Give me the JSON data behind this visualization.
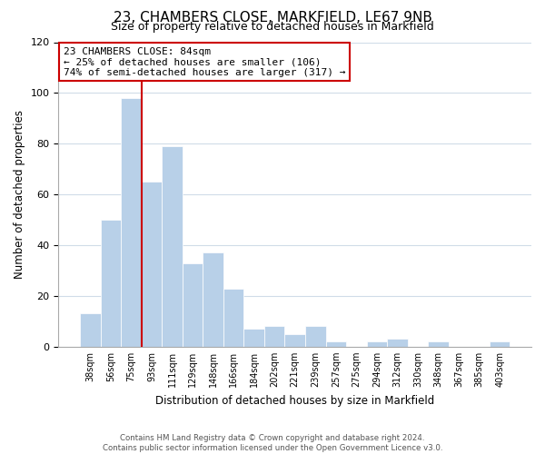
{
  "title": "23, CHAMBERS CLOSE, MARKFIELD, LE67 9NB",
  "subtitle": "Size of property relative to detached houses in Markfield",
  "xlabel": "Distribution of detached houses by size in Markfield",
  "ylabel": "Number of detached properties",
  "bin_labels": [
    "38sqm",
    "56sqm",
    "75sqm",
    "93sqm",
    "111sqm",
    "129sqm",
    "148sqm",
    "166sqm",
    "184sqm",
    "202sqm",
    "221sqm",
    "239sqm",
    "257sqm",
    "275sqm",
    "294sqm",
    "312sqm",
    "330sqm",
    "348sqm",
    "367sqm",
    "385sqm",
    "403sqm"
  ],
  "bar_heights": [
    13,
    50,
    98,
    65,
    79,
    33,
    37,
    23,
    7,
    8,
    5,
    8,
    2,
    0,
    2,
    3,
    0,
    2,
    0,
    0,
    2
  ],
  "bar_color": "#b8d0e8",
  "bar_edge_color": "#ffffff",
  "vline_color": "#cc0000",
  "ylim": [
    0,
    120
  ],
  "yticks": [
    0,
    20,
    40,
    60,
    80,
    100,
    120
  ],
  "annotation_line1": "23 CHAMBERS CLOSE: 84sqm",
  "annotation_line2": "← 25% of detached houses are smaller (106)",
  "annotation_line3": "74% of semi-detached houses are larger (317) →",
  "annotation_box_color": "#ffffff",
  "annotation_box_edge": "#cc0000",
  "footer_line1": "Contains HM Land Registry data © Crown copyright and database right 2024.",
  "footer_line2": "Contains public sector information licensed under the Open Government Licence v3.0.",
  "background_color": "#ffffff",
  "grid_color": "#d0dce8",
  "title_fontsize": 11,
  "subtitle_fontsize": 9
}
